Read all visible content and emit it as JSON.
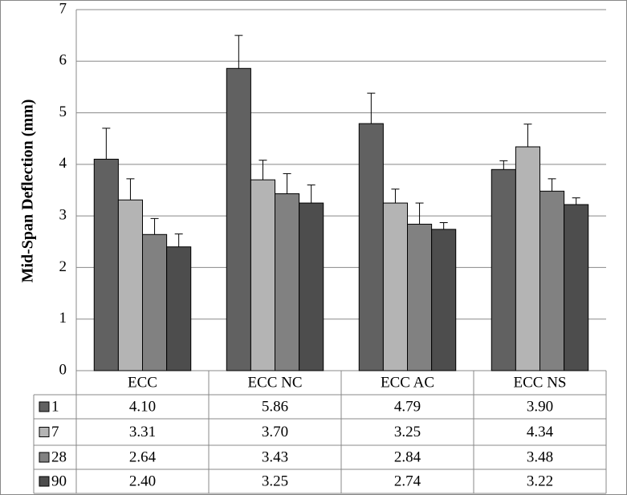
{
  "chart_data": {
    "type": "bar",
    "ylabel": "Mid-Span Deflection  (mm)",
    "categories": [
      "ECC",
      "ECC NC",
      "ECC AC",
      "ECC NS"
    ],
    "series": [
      {
        "name": "1",
        "color": "#616161",
        "values": [
          4.1,
          5.86,
          4.79,
          3.9
        ],
        "value_labels": [
          "4.10",
          "5.86",
          "4.79",
          "3.90"
        ],
        "errors": [
          0.6,
          0.64,
          0.59,
          0.17
        ]
      },
      {
        "name": "7",
        "color": "#b4b4b4",
        "values": [
          3.31,
          3.7,
          3.25,
          4.34
        ],
        "value_labels": [
          "3.31",
          "3.70",
          "3.25",
          "4.34"
        ],
        "errors": [
          0.41,
          0.38,
          0.27,
          0.44
        ]
      },
      {
        "name": "28",
        "color": "#818181",
        "values": [
          2.64,
          3.43,
          2.84,
          3.48
        ],
        "value_labels": [
          "2.64",
          "3.43",
          "2.84",
          "3.48"
        ],
        "errors": [
          0.31,
          0.39,
          0.41,
          0.24
        ]
      },
      {
        "name": "90",
        "color": "#4d4d4d",
        "values": [
          2.4,
          3.25,
          2.74,
          3.22
        ],
        "value_labels": [
          "2.40",
          "3.25",
          "2.74",
          "3.22"
        ],
        "errors": [
          0.25,
          0.35,
          0.13,
          0.13
        ]
      }
    ],
    "ylim": [
      0,
      7
    ],
    "yticks": [
      0,
      1,
      2,
      3,
      4,
      5,
      6,
      7
    ],
    "grid": true
  }
}
